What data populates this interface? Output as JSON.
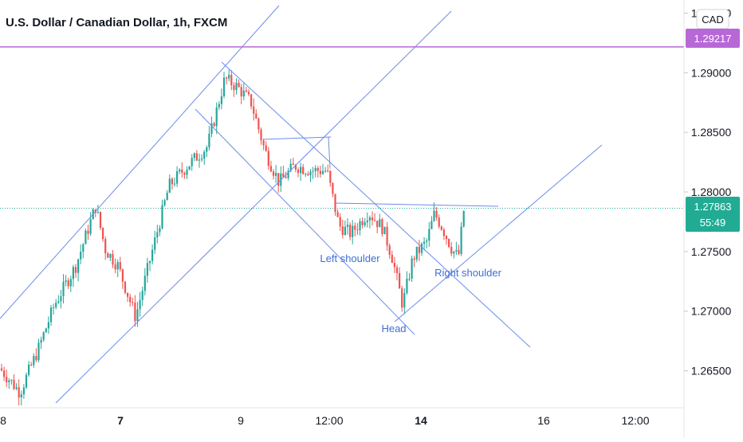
{
  "symbol_title": "U.S. Dollar / Canadian Dollar, 1h, FXCM",
  "currency_badge": "CAD",
  "chart_data": {
    "type": "candlestick",
    "title": "U.S. Dollar / Canadian Dollar, 1h, FXCM",
    "y_axis": {
      "side": "right",
      "range": [
        1.2625,
        1.2955
      ],
      "ticks": [
        "1.29500",
        "1.29000",
        "1.28500",
        "1.28000",
        "1.27500",
        "1.27000",
        "1.26500"
      ]
    },
    "x_axis": {
      "ticks": [
        "8",
        "7",
        "9",
        "12:00",
        "14",
        "16",
        "12:00"
      ],
      "bold_ticks": [
        "7",
        "14"
      ]
    },
    "grid": false,
    "colors": {
      "up": "#26a69a",
      "down": "#ef5350",
      "trendline": "#6d8ce8",
      "level_line": "#b868d6",
      "price_tag": "#22ab94",
      "annotation": "#3d6fd6"
    },
    "current_price": {
      "value": "1.27863",
      "countdown": "55:49"
    },
    "horizontal_level": {
      "value": "1.29217"
    },
    "annotations": [
      {
        "text": "Left shoulder"
      },
      {
        "text": "Head"
      },
      {
        "text": "Right shoulder"
      }
    ],
    "pattern": "head-and-shoulders (inverse) neckline at ~1.2787 with descending and ascending channels"
  }
}
